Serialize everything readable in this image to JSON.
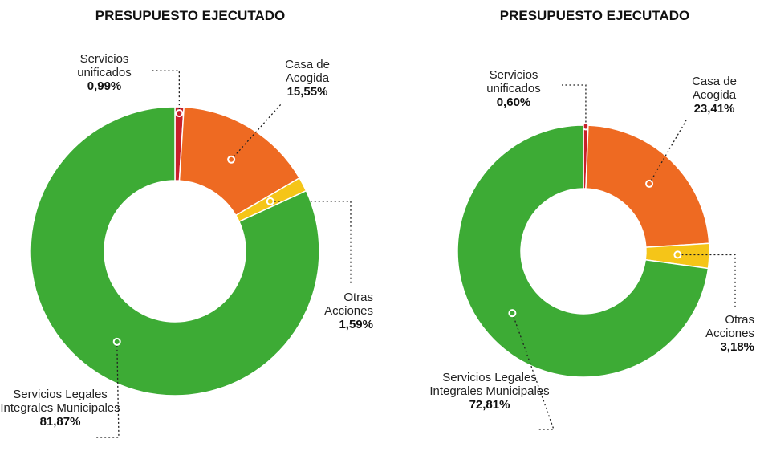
{
  "chart_data": [
    {
      "type": "pie",
      "title": "PRESUPUESTO EJECUTADO",
      "categories": [
        "Servicios unificados",
        "Casa de Acogida",
        "Otras Acciones",
        "Servicios Legales Integrales Municipales"
      ],
      "values": [
        0.99,
        15.55,
        1.59,
        81.87
      ],
      "value_labels": [
        "0,99%",
        "15,55%",
        "1,59%",
        "81,87%"
      ],
      "colors": [
        "#c8202a",
        "#ee6a22",
        "#f5c518",
        "#3dab35"
      ]
    },
    {
      "type": "pie",
      "title": "PRESUPUESTO EJECUTADO",
      "categories": [
        "Servicios unificados",
        "Casa de Acogida",
        "Otras Acciones",
        "Servicios Legales Integrales Municipales"
      ],
      "values": [
        0.6,
        23.41,
        3.18,
        72.81
      ],
      "value_labels": [
        "0,60%",
        "23,41%",
        "3,18%",
        "72,81%"
      ],
      "colors": [
        "#c8202a",
        "#ee6a22",
        "#f5c518",
        "#3dab35"
      ]
    }
  ]
}
